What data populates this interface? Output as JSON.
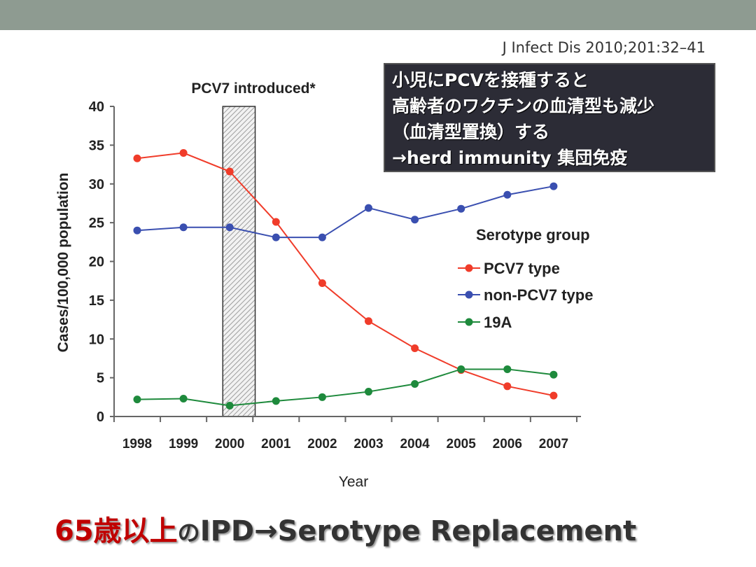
{
  "slide": {
    "citation": "J Infect Dis 2010;201:32–41",
    "callout_lines": [
      "小児にPCVを接種すると",
      "高齢者のワクチンの血清型も減少",
      "（血清型置換）する",
      "→herd immunity 集団免疫"
    ],
    "bottom_title_red": "65歳以上",
    "bottom_title_no": "の",
    "bottom_title_rest": "IPD→Serotype Replacement",
    "colors": {
      "topbar": "#8e9b91",
      "red_text": "#c00000",
      "callout_bg": "#2c2c36"
    }
  },
  "chart_data": {
    "type": "line",
    "title": "",
    "annotation": "PCV7 introduced*",
    "annotation_band": [
      1999.85,
      2000.55
    ],
    "xlabel": "Year",
    "ylabel": "Cases/100,000 population",
    "x": [
      1998,
      1999,
      2000,
      2001,
      2002,
      2003,
      2004,
      2005,
      2006,
      2007
    ],
    "x_tick_labels": [
      "1998",
      "1999",
      "2000",
      "2001",
      "2002",
      "2003",
      "2004",
      "2005",
      "2006",
      "2007"
    ],
    "ylim": [
      0,
      40
    ],
    "y_ticks": [
      0,
      5,
      10,
      15,
      20,
      25,
      30,
      35,
      40
    ],
    "grid": false,
    "legend_title": "Serotype group",
    "legend_placement": "right",
    "series": [
      {
        "name": "PCV7 type",
        "color": "#f03c2a",
        "values": [
          33.3,
          34.0,
          31.6,
          25.1,
          17.2,
          12.3,
          8.8,
          6.0,
          3.9,
          2.7
        ]
      },
      {
        "name": "non-PCV7 type",
        "color": "#3a4fb0",
        "values": [
          24.0,
          24.4,
          24.4,
          23.1,
          23.1,
          26.9,
          25.4,
          26.8,
          28.6,
          29.7
        ]
      },
      {
        "name": "19A",
        "color": "#1e8a3c",
        "values": [
          2.2,
          2.3,
          1.4,
          2.0,
          2.5,
          3.2,
          4.2,
          6.1,
          6.1,
          5.4
        ]
      }
    ]
  }
}
